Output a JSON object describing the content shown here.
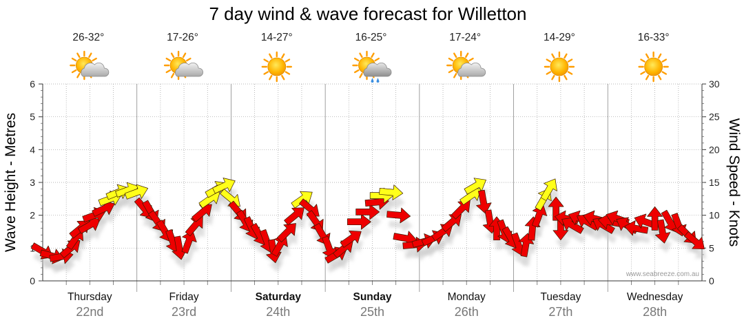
{
  "chart_data": {
    "type": "scatter",
    "title": "7 day wind & wave forecast for Willetton",
    "left_axis": {
      "label": "Wave Height - Metres",
      "range": [
        0,
        6
      ],
      "ticks": [
        "0",
        "1",
        "2",
        "3",
        "4",
        "5",
        "6"
      ]
    },
    "right_axis": {
      "label": "Wind Speed - Knots",
      "range": [
        0,
        30
      ],
      "ticks": [
        "0",
        "5",
        "10",
        "15",
        "20",
        "25",
        "30"
      ]
    },
    "grid": true,
    "credit": "www.seabreeze.com.au",
    "days": [
      {
        "name": "Thursday",
        "date": "22nd",
        "temp": "26-32°",
        "icon": "partly-cloudy-icon",
        "bold": false
      },
      {
        "name": "Friday",
        "date": "23rd",
        "temp": "17-26°",
        "icon": "partly-cloudy-icon",
        "bold": false
      },
      {
        "name": "Saturday",
        "date": "24th",
        "temp": "14-27°",
        "icon": "sunny-icon",
        "bold": true
      },
      {
        "name": "Sunday",
        "date": "25th",
        "temp": "16-25°",
        "icon": "showers-icon",
        "bold": true
      },
      {
        "name": "Monday",
        "date": "26th",
        "temp": "17-24°",
        "icon": "partly-cloudy-icon",
        "bold": false
      },
      {
        "name": "Tuesday",
        "date": "27th",
        "temp": "14-29°",
        "icon": "sunny-icon",
        "bold": false
      },
      {
        "name": "Wednesday",
        "date": "28th",
        "temp": "16-33°",
        "icon": "sunny-icon",
        "bold": false
      }
    ],
    "colors": {
      "light_wind": "#ffff1a",
      "strong_wind": "#ee0000",
      "grid": "#9a9a9a",
      "shadow": "#c8c8c8"
    },
    "series": [
      {
        "name": "Wind speed (knots) and direction (degrees toward, 0 = east, 90 = up)",
        "note": "t = position in days from start of Thursday (0-7)",
        "points": [
          {
            "t": 0.0,
            "speed": 4.5,
            "dir": -30
          },
          {
            "t": 0.1,
            "speed": 3.8,
            "dir": -15
          },
          {
            "t": 0.2,
            "speed": 3.7,
            "dir": 10
          },
          {
            "t": 0.3,
            "speed": 5.0,
            "dir": 40
          },
          {
            "t": 0.35,
            "speed": 6.5,
            "dir": 55
          },
          {
            "t": 0.4,
            "speed": 8.0,
            "dir": 40
          },
          {
            "t": 0.5,
            "speed": 8.5,
            "dir": 30
          },
          {
            "t": 0.55,
            "speed": 10.0,
            "dir": 20
          },
          {
            "t": 0.65,
            "speed": 11.0,
            "dir": 25
          },
          {
            "t": 0.72,
            "speed": 12.5,
            "dir": 20
          },
          {
            "t": 0.8,
            "speed": 13.5,
            "dir": 22
          },
          {
            "t": 0.9,
            "speed": 13.8,
            "dir": 20
          },
          {
            "t": 1.0,
            "speed": 13.5,
            "dir": 20
          },
          {
            "t": 1.08,
            "speed": 11.0,
            "dir": -50
          },
          {
            "t": 1.15,
            "speed": 10.5,
            "dir": -60
          },
          {
            "t": 1.22,
            "speed": 9.0,
            "dir": -55
          },
          {
            "t": 1.3,
            "speed": 7.5,
            "dir": -60
          },
          {
            "t": 1.38,
            "speed": 6.0,
            "dir": -70
          },
          {
            "t": 1.45,
            "speed": 5.0,
            "dir": -80
          },
          {
            "t": 1.55,
            "speed": 6.0,
            "dir": 70
          },
          {
            "t": 1.62,
            "speed": 8.5,
            "dir": 50
          },
          {
            "t": 1.7,
            "speed": 10.5,
            "dir": 40
          },
          {
            "t": 1.78,
            "speed": 12.5,
            "dir": 35
          },
          {
            "t": 1.85,
            "speed": 14.0,
            "dir": 30
          },
          {
            "t": 1.93,
            "speed": 14.5,
            "dir": 25
          },
          {
            "t": 2.0,
            "speed": 12.5,
            "dir": -40
          },
          {
            "t": 2.08,
            "speed": 10.5,
            "dir": -50
          },
          {
            "t": 2.15,
            "speed": 9.0,
            "dir": -60
          },
          {
            "t": 2.22,
            "speed": 8.0,
            "dir": -65
          },
          {
            "t": 2.3,
            "speed": 7.0,
            "dir": -60
          },
          {
            "t": 2.38,
            "speed": 6.0,
            "dir": -70
          },
          {
            "t": 2.45,
            "speed": 4.5,
            "dir": -80
          },
          {
            "t": 2.52,
            "speed": 5.5,
            "dir": 60
          },
          {
            "t": 2.6,
            "speed": 7.5,
            "dir": 45
          },
          {
            "t": 2.68,
            "speed": 10.0,
            "dir": 40
          },
          {
            "t": 2.76,
            "speed": 12.5,
            "dir": 35
          },
          {
            "t": 2.84,
            "speed": 11.0,
            "dir": -40
          },
          {
            "t": 2.9,
            "speed": 9.0,
            "dir": -55
          },
          {
            "t": 2.97,
            "speed": 7.0,
            "dir": -60
          },
          {
            "t": 3.04,
            "speed": 5.0,
            "dir": -70
          },
          {
            "t": 3.12,
            "speed": 4.0,
            "dir": 30
          },
          {
            "t": 3.2,
            "speed": 5.0,
            "dir": 40
          },
          {
            "t": 3.28,
            "speed": 6.5,
            "dir": 35
          },
          {
            "t": 3.36,
            "speed": 9.0,
            "dir": 0
          },
          {
            "t": 3.45,
            "speed": 10.5,
            "dir": 0
          },
          {
            "t": 3.55,
            "speed": 12.0,
            "dir": 5
          },
          {
            "t": 3.6,
            "speed": 13.0,
            "dir": 0
          },
          {
            "t": 3.7,
            "speed": 13.5,
            "dir": -5
          },
          {
            "t": 3.78,
            "speed": 10.0,
            "dir": -5
          },
          {
            "t": 3.85,
            "speed": 6.5,
            "dir": -10
          },
          {
            "t": 3.95,
            "speed": 5.5,
            "dir": 5
          },
          {
            "t": 4.05,
            "speed": 6.0,
            "dir": 15
          },
          {
            "t": 4.15,
            "speed": 6.5,
            "dir": 25
          },
          {
            "t": 4.25,
            "speed": 7.5,
            "dir": 35
          },
          {
            "t": 4.35,
            "speed": 9.0,
            "dir": 40
          },
          {
            "t": 4.45,
            "speed": 11.0,
            "dir": 45
          },
          {
            "t": 4.55,
            "speed": 13.0,
            "dir": 35
          },
          {
            "t": 4.6,
            "speed": 14.5,
            "dir": 30
          },
          {
            "t": 4.68,
            "speed": 12.0,
            "dir": -80
          },
          {
            "t": 4.75,
            "speed": 9.0,
            "dir": -80
          },
          {
            "t": 4.82,
            "speed": 8.0,
            "dir": 90
          },
          {
            "t": 4.9,
            "speed": 7.5,
            "dir": -70
          },
          {
            "t": 4.97,
            "speed": 6.5,
            "dir": -60
          },
          {
            "t": 5.05,
            "speed": 5.5,
            "dir": -70
          },
          {
            "t": 5.13,
            "speed": 5.5,
            "dir": 80
          },
          {
            "t": 5.2,
            "speed": 8.0,
            "dir": 85
          },
          {
            "t": 5.27,
            "speed": 10.0,
            "dir": 70
          },
          {
            "t": 5.32,
            "speed": 12.5,
            "dir": 60
          },
          {
            "t": 5.38,
            "speed": 14.0,
            "dir": 60
          },
          {
            "t": 5.45,
            "speed": 11.0,
            "dir": 90
          },
          {
            "t": 5.5,
            "speed": 8.0,
            "dir": -90
          },
          {
            "t": 5.56,
            "speed": 9.5,
            "dir": 170
          },
          {
            "t": 5.62,
            "speed": 8.5,
            "dir": 150
          },
          {
            "t": 5.7,
            "speed": 9.5,
            "dir": 160
          },
          {
            "t": 5.78,
            "speed": 9.0,
            "dir": 150
          },
          {
            "t": 5.86,
            "speed": 9.5,
            "dir": 165
          },
          {
            "t": 5.95,
            "speed": 8.5,
            "dir": 150
          },
          {
            "t": 6.02,
            "speed": 9.0,
            "dir": 170
          },
          {
            "t": 6.1,
            "speed": 9.5,
            "dir": 160
          },
          {
            "t": 6.2,
            "speed": 8.5,
            "dir": 150
          },
          {
            "t": 6.3,
            "speed": 8.0,
            "dir": 170
          },
          {
            "t": 6.4,
            "speed": 9.0,
            "dir": 160
          },
          {
            "t": 6.5,
            "speed": 9.5,
            "dir": 90
          },
          {
            "t": 6.58,
            "speed": 7.5,
            "dir": -80
          },
          {
            "t": 6.66,
            "speed": 9.0,
            "dir": -60
          },
          {
            "t": 6.75,
            "speed": 8.5,
            "dir": -70
          },
          {
            "t": 6.85,
            "speed": 7.0,
            "dir": -45
          },
          {
            "t": 6.93,
            "speed": 6.0,
            "dir": -40
          }
        ]
      }
    ]
  }
}
